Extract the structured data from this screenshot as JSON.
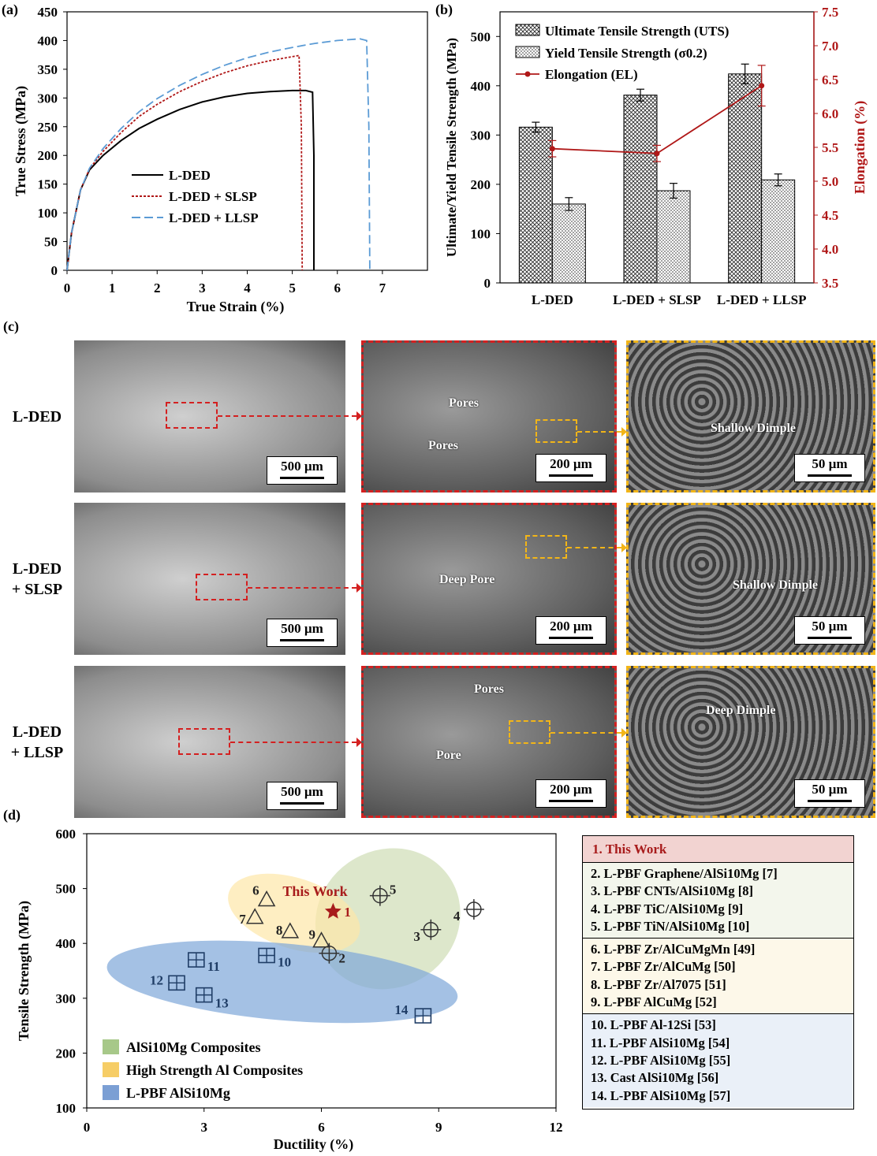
{
  "panels": {
    "a": "(a)",
    "b": "(b)",
    "c": "(c)",
    "d": "(d)"
  },
  "chart_data": [
    {
      "panel": "(a)",
      "type": "line",
      "xlabel": "True Strain (%)",
      "ylabel": "True Stress (MPa)",
      "xlim": [
        0,
        8
      ],
      "ylim": [
        0,
        450
      ],
      "xticks": [
        0,
        1,
        2,
        3,
        4,
        5,
        6,
        7
      ],
      "yticks": [
        0,
        50,
        100,
        150,
        200,
        250,
        300,
        350,
        400,
        450
      ],
      "legend_position": "center",
      "series": [
        {
          "name": "L-DED",
          "color": "#000000",
          "dash": "solid",
          "x": [
            0,
            0.1,
            0.3,
            0.5,
            0.8,
            1.2,
            1.6,
            2.0,
            2.5,
            3.0,
            3.5,
            4.0,
            4.5,
            5.0,
            5.3,
            5.45,
            5.48,
            5.48
          ],
          "y": [
            0,
            65,
            140,
            175,
            200,
            226,
            247,
            263,
            280,
            293,
            302,
            308,
            311,
            313,
            313,
            310,
            200,
            0
          ]
        },
        {
          "name": "L-DED + SLSP",
          "color": "#b01818",
          "dash": "dotted",
          "x": [
            0,
            0.1,
            0.3,
            0.5,
            0.8,
            1.2,
            1.6,
            2.0,
            2.5,
            3.0,
            3.5,
            4.0,
            4.5,
            5.0,
            5.15,
            5.2,
            5.22
          ],
          "y": [
            0,
            65,
            140,
            177,
            207,
            240,
            268,
            289,
            311,
            329,
            344,
            356,
            365,
            372,
            374,
            250,
            0
          ]
        },
        {
          "name": "L-DED + LLSP",
          "color": "#5b9bd5",
          "dash": "dashed",
          "x": [
            0,
            0.1,
            0.3,
            0.5,
            0.8,
            1.2,
            1.6,
            2.0,
            2.5,
            3.0,
            3.5,
            4.0,
            4.5,
            5.0,
            5.5,
            6.0,
            6.5,
            6.65,
            6.7,
            6.72
          ],
          "y": [
            0,
            65,
            140,
            178,
            212,
            247,
            276,
            299,
            322,
            341,
            357,
            370,
            380,
            388,
            395,
            400,
            403,
            400,
            250,
            0
          ]
        }
      ]
    },
    {
      "panel": "(b)",
      "type": "bar",
      "categories": [
        "L-DED",
        "L-DED + SLSP",
        "L-DED + LLSP"
      ],
      "ylabel": "Ultimate/Yield Tensile Strength (MPa)",
      "y2label": "Elongation (%)",
      "ylim": [
        0,
        550
      ],
      "y2lim": [
        3.5,
        7.5
      ],
      "yticks": [
        0,
        100,
        200,
        300,
        400,
        500
      ],
      "y2ticks": [
        "3.5",
        "4.0",
        "4.5",
        "5.0",
        "5.5",
        "6.0",
        "6.5",
        "7.0",
        "7.5"
      ],
      "legend_position": "top-left",
      "series": [
        {
          "name": "Ultimate Tensile Strength (UTS)",
          "pattern": "crosshatch",
          "values": [
            316,
            381,
            424
          ],
          "errors": [
            10,
            12,
            20
          ]
        },
        {
          "name": "Yield Tensile Strength (σ0.2)",
          "pattern": "dots",
          "values": [
            160,
            187,
            209
          ],
          "errors": [
            13,
            15,
            12
          ]
        },
        {
          "name": "Elongation (EL)",
          "axis": "right",
          "color": "#b01818",
          "values": [
            5.48,
            5.41,
            6.41
          ],
          "errors": [
            0.12,
            0.12,
            0.3
          ]
        }
      ]
    },
    {
      "panel": "(d)",
      "type": "scatter",
      "xlabel": "Ductility (%)",
      "ylabel": "Tensile Strength (MPa)",
      "xlim": [
        0,
        12
      ],
      "ylim": [
        100,
        600
      ],
      "xticks": [
        0,
        3,
        6,
        9,
        12
      ],
      "yticks": [
        100,
        200,
        300,
        400,
        500,
        600
      ],
      "annotation": "This Work",
      "legend_position": "bottom-left",
      "groups": [
        {
          "name": "AlSi10Mg Composites",
          "color": "#cfddb5",
          "legend_color": "#a7c889"
        },
        {
          "name": "High Strength Al Composites",
          "color": "#fde7a8",
          "legend_color": "#f6cd66"
        },
        {
          "name": "L-PBF AlSi10Mg",
          "color": "#7ea6d8",
          "legend_color": "#7b9fd4"
        }
      ],
      "points": [
        {
          "id": "1",
          "x": 6.3,
          "y": 458,
          "marker": "star"
        },
        {
          "id": "2",
          "x": 6.2,
          "y": 382,
          "marker": "crosshair"
        },
        {
          "id": "3",
          "x": 8.8,
          "y": 425,
          "marker": "crosshair"
        },
        {
          "id": "4",
          "x": 9.9,
          "y": 462,
          "marker": "crosshair"
        },
        {
          "id": "5",
          "x": 7.5,
          "y": 487,
          "marker": "crosshair"
        },
        {
          "id": "6",
          "x": 4.6,
          "y": 480,
          "marker": "triangle"
        },
        {
          "id": "7",
          "x": 4.3,
          "y": 448,
          "marker": "triangle"
        },
        {
          "id": "8",
          "x": 5.2,
          "y": 422,
          "marker": "triangle"
        },
        {
          "id": "9",
          "x": 6.0,
          "y": 405,
          "marker": "triangle"
        },
        {
          "id": "10",
          "x": 4.6,
          "y": 378,
          "marker": "square"
        },
        {
          "id": "11",
          "x": 2.8,
          "y": 370,
          "marker": "square"
        },
        {
          "id": "12",
          "x": 2.3,
          "y": 328,
          "marker": "square"
        },
        {
          "id": "13",
          "x": 3.0,
          "y": 306,
          "marker": "square"
        },
        {
          "id": "14",
          "x": 8.6,
          "y": 268,
          "marker": "square"
        }
      ]
    }
  ],
  "sem": {
    "rows": [
      {
        "label_lines": [
          "L-DED"
        ],
        "annotations_mid": [
          "Pores",
          "Pores"
        ],
        "annotation_right": "Shallow Dimple"
      },
      {
        "label_lines": [
          "L-DED",
          "+ SLSP"
        ],
        "annotations_mid": [
          "Deep Pore"
        ],
        "annotation_right": "Shallow Dimple"
      },
      {
        "label_lines": [
          "L-DED",
          "+ LLSP"
        ],
        "annotations_mid": [
          "Pores",
          "Pore"
        ],
        "annotation_right": "Deep Dimple"
      }
    ],
    "scale_bars": [
      "500 µm",
      "200 µm",
      "50 µm"
    ]
  },
  "legend_table": {
    "header": "1. This Work",
    "groups": [
      [
        "2. L-PBF Graphene/AlSi10Mg [7]",
        "3. L-PBF CNTs/AlSi10Mg [8]",
        "4. L-PBF TiC/AlSi10Mg [9]",
        "5. L-PBF TiN/AlSi10Mg [10]"
      ],
      [
        "6. L-PBF Zr/AlCuMgMn [49]",
        "7. L-PBF Zr/AlCuMg [50]",
        "8. L-PBF Zr/Al7075 [51]",
        "9. L-PBF AlCuMg [52]"
      ],
      [
        "10. L-PBF Al-12Si [53]",
        "11. L-PBF AlSi10Mg [54]",
        "12. L-PBF AlSi10Mg [55]",
        "13. Cast AlSi10Mg [56]",
        "14. L-PBF AlSi10Mg [57]"
      ]
    ],
    "group_colors": [
      "#f3f6ec",
      "#fdf8e9",
      "#eaf0f8"
    ]
  }
}
